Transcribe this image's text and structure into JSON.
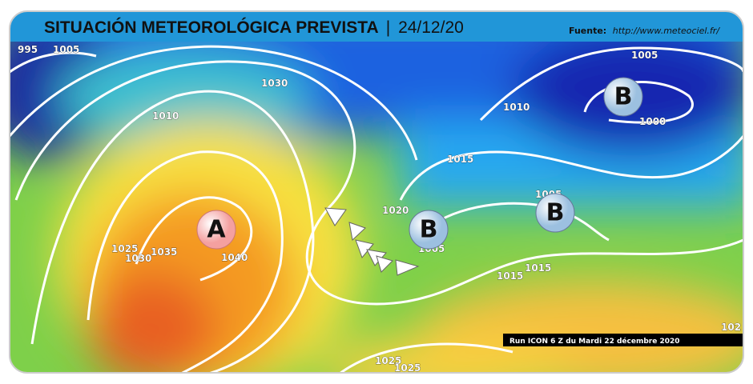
{
  "header": {
    "title": "SITUACIÓN METEOROLÓGICA PREVISTA",
    "separator": "|",
    "date": "24/12/20",
    "source_label": "Fuente:",
    "source_url": "http://www.meteociel.fr/"
  },
  "pressure_centers": [
    {
      "label": "A"
    },
    {
      "label": "B"
    },
    {
      "label": "B"
    },
    {
      "label": "B"
    }
  ],
  "isobar_labels": [
    "995",
    "1005",
    "1030",
    "1010",
    "1015",
    "1020",
    "1005",
    "1025",
    "1030",
    "1035",
    "1040",
    "1010",
    "1005",
    "1000",
    "1005",
    "1015",
    "1015",
    "1025",
    "1025",
    "102"
  ],
  "run_info": "Run ICON 6 Z du Mardi 22 décembre 2020"
}
